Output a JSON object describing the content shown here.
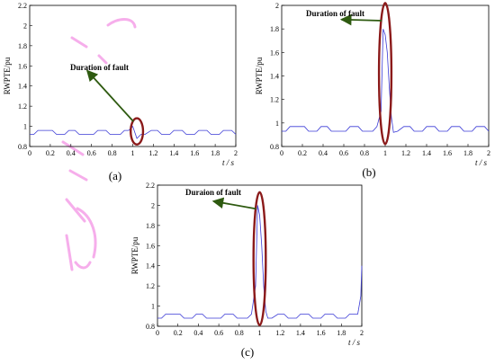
{
  "chart_data": [
    {
      "panel": "(a)",
      "type": "line",
      "ylabel": "RWPTE/pu",
      "xlabel": "t / s",
      "xlim": [
        0,
        2
      ],
      "ylim": [
        0.8,
        2.2
      ],
      "xticks": [
        "0",
        "0.2",
        "0.4",
        "0.6",
        "0.8",
        "1",
        "1.2",
        "1.4",
        "1.6",
        "1.8",
        "2"
      ],
      "yticks": [
        "0.8",
        "1",
        "1.2",
        "1.4",
        "1.6",
        "1.8",
        "2",
        "2.2"
      ],
      "annotation": "Duration of fault",
      "ellipse": {
        "cx": 1.04,
        "cy": 0.95,
        "rx": 0.06,
        "ry": 0.13
      },
      "arrow_to": {
        "x": 0.56,
        "y": 1.55
      },
      "series": [
        {
          "x": [
            0,
            0.04,
            0.08,
            0.22,
            0.26,
            0.34,
            0.38,
            0.44,
            0.48,
            0.62,
            0.66,
            0.74,
            0.78,
            0.88,
            0.92,
            0.96,
            1.0,
            1.04,
            1.08,
            1.12,
            1.18,
            1.24,
            1.28,
            1.36,
            1.4,
            1.48,
            1.52,
            1.6,
            1.64,
            1.72,
            1.76,
            1.84,
            1.88,
            1.96,
            2.0
          ],
          "y": [
            0.92,
            0.92,
            0.96,
            0.96,
            0.92,
            0.92,
            0.96,
            0.96,
            0.92,
            0.92,
            0.96,
            0.96,
            0.92,
            0.92,
            0.96,
            0.96,
            1.0,
            0.88,
            0.92,
            0.92,
            0.96,
            0.96,
            0.92,
            0.92,
            0.96,
            0.96,
            0.92,
            0.92,
            0.96,
            0.96,
            0.92,
            0.92,
            0.96,
            0.96,
            0.92
          ]
        }
      ]
    },
    {
      "panel": "(b)",
      "type": "line",
      "ylabel": "RWPTE/pu",
      "xlabel": "t / s",
      "xlim": [
        0,
        2
      ],
      "ylim": [
        0.8,
        2.0
      ],
      "xticks": [
        "0",
        "0.2",
        "0.4",
        "0.6",
        "0.8",
        "1",
        "1.2",
        "1.4",
        "1.6",
        "1.8",
        "2"
      ],
      "yticks": [
        "0.8",
        "1",
        "1.2",
        "1.4",
        "1.6",
        "1.8",
        "2"
      ],
      "annotation": "Duration of fault",
      "ellipse": {
        "cx": 1.0,
        "cy": 1.42,
        "rx": 0.06,
        "ry": 0.6
      },
      "arrow_to": {
        "x": 0.58,
        "y": 1.88
      },
      "series": [
        {
          "x": [
            0,
            0.04,
            0.08,
            0.22,
            0.26,
            0.34,
            0.38,
            0.44,
            0.48,
            0.62,
            0.66,
            0.74,
            0.78,
            0.88,
            0.92,
            0.96,
            0.98,
            1.0,
            1.02,
            1.04,
            1.06,
            1.08,
            1.12,
            1.18,
            1.24,
            1.28,
            1.36,
            1.4,
            1.48,
            1.52,
            1.6,
            1.64,
            1.72,
            1.76,
            1.84,
            1.88,
            1.96,
            2.0
          ],
          "y": [
            0.93,
            0.93,
            0.97,
            0.97,
            0.93,
            0.93,
            0.97,
            0.97,
            0.93,
            0.93,
            0.97,
            0.97,
            0.93,
            0.93,
            0.97,
            1.1,
            1.8,
            1.75,
            1.6,
            1.3,
            1.05,
            0.92,
            0.93,
            0.97,
            0.97,
            0.93,
            0.93,
            0.97,
            0.97,
            0.93,
            0.93,
            0.97,
            0.97,
            0.93,
            0.93,
            0.97,
            0.97,
            0.93
          ]
        }
      ]
    },
    {
      "panel": "(c)",
      "type": "line",
      "ylabel": "RWPTE/pu",
      "xlabel": "t / s",
      "xlim": [
        0,
        2
      ],
      "ylim": [
        0.8,
        2.2
      ],
      "xticks": [
        "0",
        "0.2",
        "0.4",
        "0.6",
        "0.8",
        "1",
        "1.2",
        "1.4",
        "1.6",
        "1.8",
        "2"
      ],
      "yticks": [
        "0.8",
        "1",
        "1.2",
        "1.4",
        "1.6",
        "1.8",
        "2",
        "2.2"
      ],
      "annotation": "Duraion of fault",
      "ellipse": {
        "cx": 1.0,
        "cy": 1.47,
        "rx": 0.06,
        "ry": 0.66
      },
      "arrow_to": {
        "x": 0.55,
        "y": 2.04
      },
      "series": [
        {
          "x": [
            0,
            0.04,
            0.08,
            0.22,
            0.26,
            0.34,
            0.38,
            0.44,
            0.48,
            0.62,
            0.66,
            0.74,
            0.78,
            0.88,
            0.92,
            0.96,
            0.98,
            1.0,
            1.02,
            1.04,
            1.06,
            1.08,
            1.12,
            1.18,
            1.24,
            1.28,
            1.36,
            1.4,
            1.48,
            1.52,
            1.6,
            1.64,
            1.72,
            1.76,
            1.84,
            1.88,
            1.96,
            1.99,
            2.0
          ],
          "y": [
            0.88,
            0.88,
            0.92,
            0.92,
            0.88,
            0.88,
            0.92,
            0.92,
            0.88,
            0.88,
            0.92,
            0.92,
            0.88,
            0.88,
            0.92,
            1.2,
            2.0,
            1.9,
            1.6,
            1.2,
            0.95,
            0.88,
            0.88,
            0.92,
            0.92,
            0.88,
            0.88,
            0.92,
            0.92,
            0.88,
            0.88,
            0.92,
            0.92,
            0.88,
            0.88,
            0.92,
            0.92,
            1.1,
            1.4
          ]
        }
      ]
    }
  ]
}
